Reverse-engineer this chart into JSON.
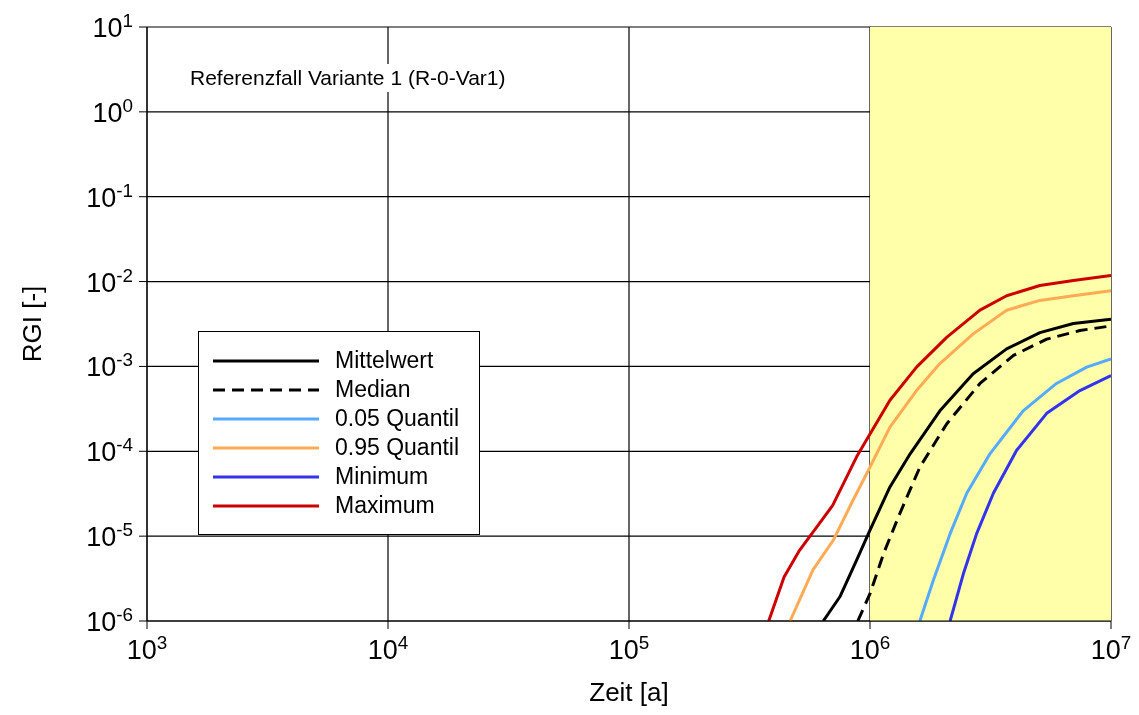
{
  "chart_data": {
    "type": "line",
    "xlabel": "Zeit [a]",
    "ylabel": "RGI [-]",
    "log": "xy",
    "grid": true,
    "legend": "left",
    "marker": "none",
    "xlim": [
      1000,
      10000000
    ],
    "ylim": [
      1e-06,
      10
    ],
    "xticks": [
      {
        "value": 1000,
        "label": "10$^{3}$"
      },
      {
        "value": 10000,
        "label": "10$^{4}$"
      },
      {
        "value": 100000,
        "label": "10$^{5}$"
      },
      {
        "value": 1000000,
        "label": "10$^{6}$"
      },
      {
        "value": 10000000,
        "label": "10$^{7}$"
      }
    ],
    "yticks": [
      {
        "value": 1e-06,
        "label": "10$^{-6}$"
      },
      {
        "value": 1e-05,
        "label": "10$^{-5}$"
      },
      {
        "value": 0.0001,
        "label": "10$^{-4}$"
      },
      {
        "value": 0.001,
        "label": "10$^{-3}$"
      },
      {
        "value": 0.01,
        "label": "10$^{-2}$"
      },
      {
        "value": 0.1,
        "label": "10$^{-1}$"
      },
      {
        "value": 1,
        "label": "10$^{0}$"
      },
      {
        "value": 10,
        "label": "10$^{1}$"
      }
    ],
    "bands": [
      {
        "axis": "x",
        "from": 1000000,
        "to": 10000000,
        "color": "#ffffaa"
      }
    ],
    "annotations": [
      "Referenzfall Variante 1 (R-0-Var1)"
    ],
    "series": [
      {
        "name": "Mittelwert",
        "color": "#000000",
        "line_style": "solid",
        "x": [
          640000,
          750000,
          880000,
          1000000,
          1210000,
          1470000,
          1950000,
          2680000,
          3690000,
          5070000,
          6980000,
          10000000
        ],
        "values": [
          1e-06,
          1.93e-06,
          5.2e-06,
          1.18e-05,
          3.8e-05,
          9.4e-05,
          0.0003,
          0.00082,
          0.00161,
          0.0025,
          0.0032,
          0.0036
        ]
      },
      {
        "name": "Median",
        "color": "#000000",
        "line_style": "dashed",
        "x": [
          890000,
          1000000,
          1140000,
          1330000,
          1610000,
          2080000,
          2860000,
          3940000,
          5410000,
          7430000,
          10000000
        ],
        "values": [
          1e-06,
          2.1e-06,
          6.3e-06,
          1.85e-05,
          6.5e-05,
          0.00021,
          0.00063,
          0.00135,
          0.0021,
          0.00265,
          0.003
        ]
      },
      {
        "name": "0.05 Quantil",
        "color": "#55aaff",
        "line_style": "solid",
        "x": [
          1610000,
          1830000,
          2150000,
          2520000,
          3150000,
          4320000,
          5940000,
          7930000,
          10000000
        ],
        "values": [
          1e-06,
          3e-06,
          1.07e-05,
          3.2e-05,
          9.4e-05,
          0.0003,
          0.00063,
          0.00098,
          0.00123
        ]
      },
      {
        "name": "0.95 Quantil",
        "color": "#ffaa55",
        "line_style": "solid",
        "x": [
          466000,
          580000,
          705000,
          850000,
          1000000,
          1210000,
          1560000,
          1950000,
          2680000,
          3690000,
          5070000,
          6980000,
          10000000
        ],
        "values": [
          1e-06,
          4e-06,
          9e-06,
          2.65e-05,
          6.5e-05,
          0.000193,
          0.00052,
          0.00108,
          0.00242,
          0.0046,
          0.006,
          0.0068,
          0.0078
        ]
      },
      {
        "name": "Minimum",
        "color": "#3333ee",
        "line_style": "solid",
        "x": [
          2150000,
          2440000,
          2770000,
          3250000,
          4060000,
          5410000,
          7430000,
          10000000
        ],
        "values": [
          1e-06,
          3.6e-06,
          1.07e-05,
          3.2e-05,
          0.000103,
          0.00028,
          0.00052,
          0.00078
        ]
      },
      {
        "name": "Maximum",
        "color": "#cc0000",
        "line_style": "solid",
        "x": [
          380000,
          440000,
          510000,
          700000,
          880000,
          1000000,
          1210000,
          1560000,
          2080000,
          2860000,
          3690000,
          5070000,
          6980000,
          10000000
        ],
        "values": [
          1e-06,
          3.3e-06,
          6.8e-06,
          2.3e-05,
          8.6e-05,
          0.00016,
          0.0004,
          0.00098,
          0.0022,
          0.0046,
          0.0068,
          0.009,
          0.0103,
          0.0118
        ]
      }
    ]
  }
}
